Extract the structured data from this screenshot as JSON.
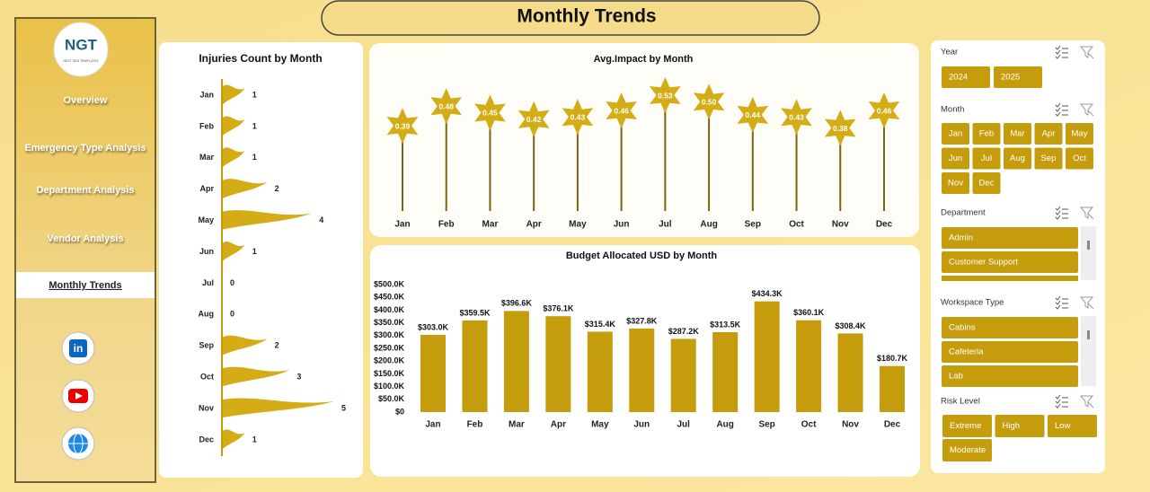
{
  "page_title": "Monthly Trends",
  "logo": {
    "text": "NGT",
    "subtext": "NEXT GEN TEMPLATES"
  },
  "nav": {
    "items": [
      "Overview",
      "Emergency Type Analysis",
      "Department Analysis",
      "Vendor Analysis",
      "Monthly Trends"
    ],
    "active": 4
  },
  "slicers": [
    {
      "title": "Year",
      "items": [
        "2024",
        "2025"
      ]
    },
    {
      "title": "Month",
      "items": [
        "Jan",
        "Feb",
        "Mar",
        "Apr",
        "May",
        "Jun",
        "Jul",
        "Aug",
        "Sep",
        "Oct",
        "Nov",
        "Dec"
      ]
    },
    {
      "title": "Department",
      "items": [
        "Admin",
        "Customer Support"
      ]
    },
    {
      "title": "Workspace Type",
      "items": [
        "Cabins",
        "Cafeteria",
        "Lab"
      ]
    },
    {
      "title": "Risk Level",
      "items": [
        "Extreme",
        "High",
        "Low",
        "Moderate"
      ]
    }
  ],
  "chart_data": [
    {
      "type": "flag-bar",
      "title": "Injuries Count by Month",
      "color": "#d4ac16",
      "categories": [
        "Jan",
        "Feb",
        "Mar",
        "Apr",
        "May",
        "Jun",
        "Jul",
        "Aug",
        "Sep",
        "Oct",
        "Nov",
        "Dec"
      ],
      "values": [
        1,
        1,
        1,
        2,
        4,
        1,
        0,
        0,
        2,
        3,
        5,
        1
      ]
    },
    {
      "type": "lollipop",
      "title": "Avg.Impact by Month",
      "color": "#d4ac16",
      "categories": [
        "Jan",
        "Feb",
        "Mar",
        "Apr",
        "May",
        "Jun",
        "Jul",
        "Aug",
        "Sep",
        "Oct",
        "Nov",
        "Dec"
      ],
      "values": [
        0.39,
        0.48,
        0.45,
        0.42,
        0.43,
        0.46,
        0.53,
        0.5,
        0.44,
        0.43,
        0.38,
        0.46
      ],
      "value_labels": [
        "0.39",
        "0.48",
        "0.45",
        "0.42",
        "0.43",
        "0.46",
        "0.53",
        "0.50",
        "0.44",
        "0.43",
        "0.38",
        "0.46"
      ]
    },
    {
      "type": "bar",
      "title": "Budget Allocated USD by Month",
      "color": "#c59d0c",
      "categories": [
        "Jan",
        "Feb",
        "Mar",
        "Apr",
        "May",
        "Jun",
        "Jul",
        "Aug",
        "Sep",
        "Oct",
        "Nov",
        "Dec"
      ],
      "values": [
        303000,
        359500,
        396600,
        376100,
        315400,
        327800,
        287200,
        313500,
        434300,
        360100,
        308400,
        180700
      ],
      "value_labels": [
        "$303.0K",
        "$359.5K",
        "$396.6K",
        "$376.1K",
        "$315.4K",
        "$327.8K",
        "$287.2K",
        "$313.5K",
        "$434.3K",
        "$360.1K",
        "$308.4K",
        "$180.7K"
      ],
      "ylim": [
        0,
        500000
      ],
      "yticks": [
        {
          "value": 0,
          "label": "$0"
        },
        {
          "value": 50000,
          "label": "$50.0K"
        },
        {
          "value": 100000,
          "label": "$100.0K"
        },
        {
          "value": 150000,
          "label": "$150.0K"
        },
        {
          "value": 200000,
          "label": "$200.0K"
        },
        {
          "value": 250000,
          "label": "$250.0K"
        },
        {
          "value": 300000,
          "label": "$300.0K"
        },
        {
          "value": 350000,
          "label": "$350.0K"
        },
        {
          "value": 400000,
          "label": "$400.0K"
        },
        {
          "value": 450000,
          "label": "$450.0K"
        },
        {
          "value": 500000,
          "label": "$500.0K"
        }
      ]
    }
  ]
}
